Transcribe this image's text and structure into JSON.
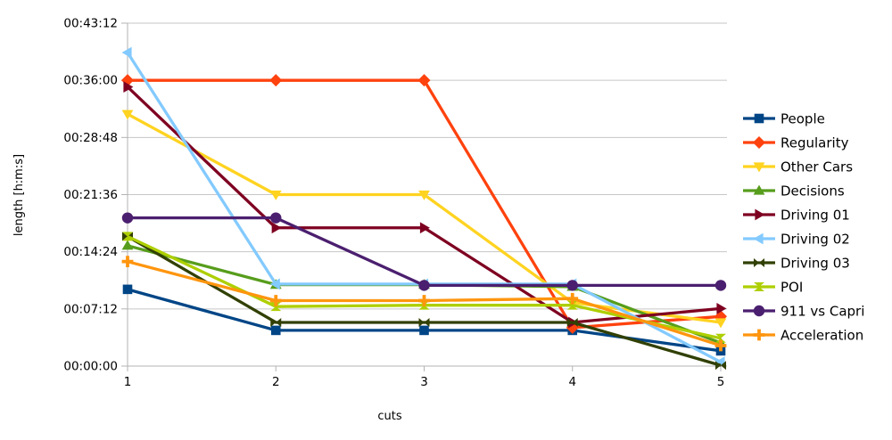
{
  "chart_data": {
    "type": "line",
    "title": "",
    "xlabel": "cuts",
    "ylabel": "length [h:m:s]",
    "x_tick_labels": [
      "1",
      "2",
      "3",
      "4",
      "5"
    ],
    "y_tick_labels": [
      "00:00:00",
      "00:07:12",
      "00:14:24",
      "00:21:36",
      "00:28:48",
      "00:36:00",
      "00:43:12"
    ],
    "y_axis": {
      "min_seconds": 0,
      "max_seconds": 2592,
      "tick_step_seconds": 432
    },
    "grid": "horizontal",
    "legend_position": "right",
    "series": [
      {
        "name": "People",
        "color": "#004586",
        "marker": "square",
        "values_hms": [
          "00:09:40",
          "00:04:30",
          "00:04:30",
          "00:04:30",
          "00:01:55"
        ]
      },
      {
        "name": "Regularity",
        "color": "#ff420e",
        "marker": "diamond",
        "values_hms": [
          "00:36:00",
          "00:36:00",
          "00:36:00",
          "00:04:50",
          "00:06:15"
        ]
      },
      {
        "name": "Other Cars",
        "color": "#ffd320",
        "marker": "arrow-down",
        "values_hms": [
          "00:31:45",
          "00:21:36",
          "00:21:36",
          "00:08:00",
          "00:05:30"
        ]
      },
      {
        "name": "Decisions",
        "color": "#579d1c",
        "marker": "arrow-up",
        "values_hms": [
          "00:15:10",
          "00:10:15",
          "00:10:15",
          "00:10:00",
          "00:02:55"
        ]
      },
      {
        "name": "Driving 01",
        "color": "#7e0021",
        "marker": "arrow-right",
        "values_hms": [
          "00:35:10",
          "00:17:25",
          "00:17:25",
          "00:05:30",
          "00:07:15"
        ]
      },
      {
        "name": "Driving 02",
        "color": "#83caff",
        "marker": "arrow-left",
        "values_hms": [
          "00:39:30",
          "00:10:20",
          "00:10:20",
          "00:10:20",
          "00:00:30"
        ]
      },
      {
        "name": "Driving 03",
        "color": "#314004",
        "marker": "bowtie",
        "values_hms": [
          "00:16:20",
          "00:05:30",
          "00:05:30",
          "00:05:30",
          "00:00:05"
        ]
      },
      {
        "name": "POI",
        "color": "#aecf00",
        "marker": "sandglass",
        "values_hms": [
          "00:16:20",
          "00:07:30",
          "00:07:40",
          "00:07:40",
          "00:03:30"
        ]
      },
      {
        "name": "911 vs Capri",
        "color": "#4b1f6f",
        "marker": "circle",
        "values_hms": [
          "00:18:40",
          "00:18:40",
          "00:10:10",
          "00:10:10",
          "00:10:10"
        ]
      },
      {
        "name": "Acceleration",
        "color": "#ff950e",
        "marker": "plus",
        "values_hms": [
          "00:13:10",
          "00:08:15",
          "00:08:15",
          "00:08:30",
          "00:02:35"
        ]
      }
    ]
  },
  "style": {
    "background": "#ffffff",
    "grid_color": "#c6c6c6",
    "axis_color": "#b3b3b3",
    "text_color": "#000000"
  }
}
